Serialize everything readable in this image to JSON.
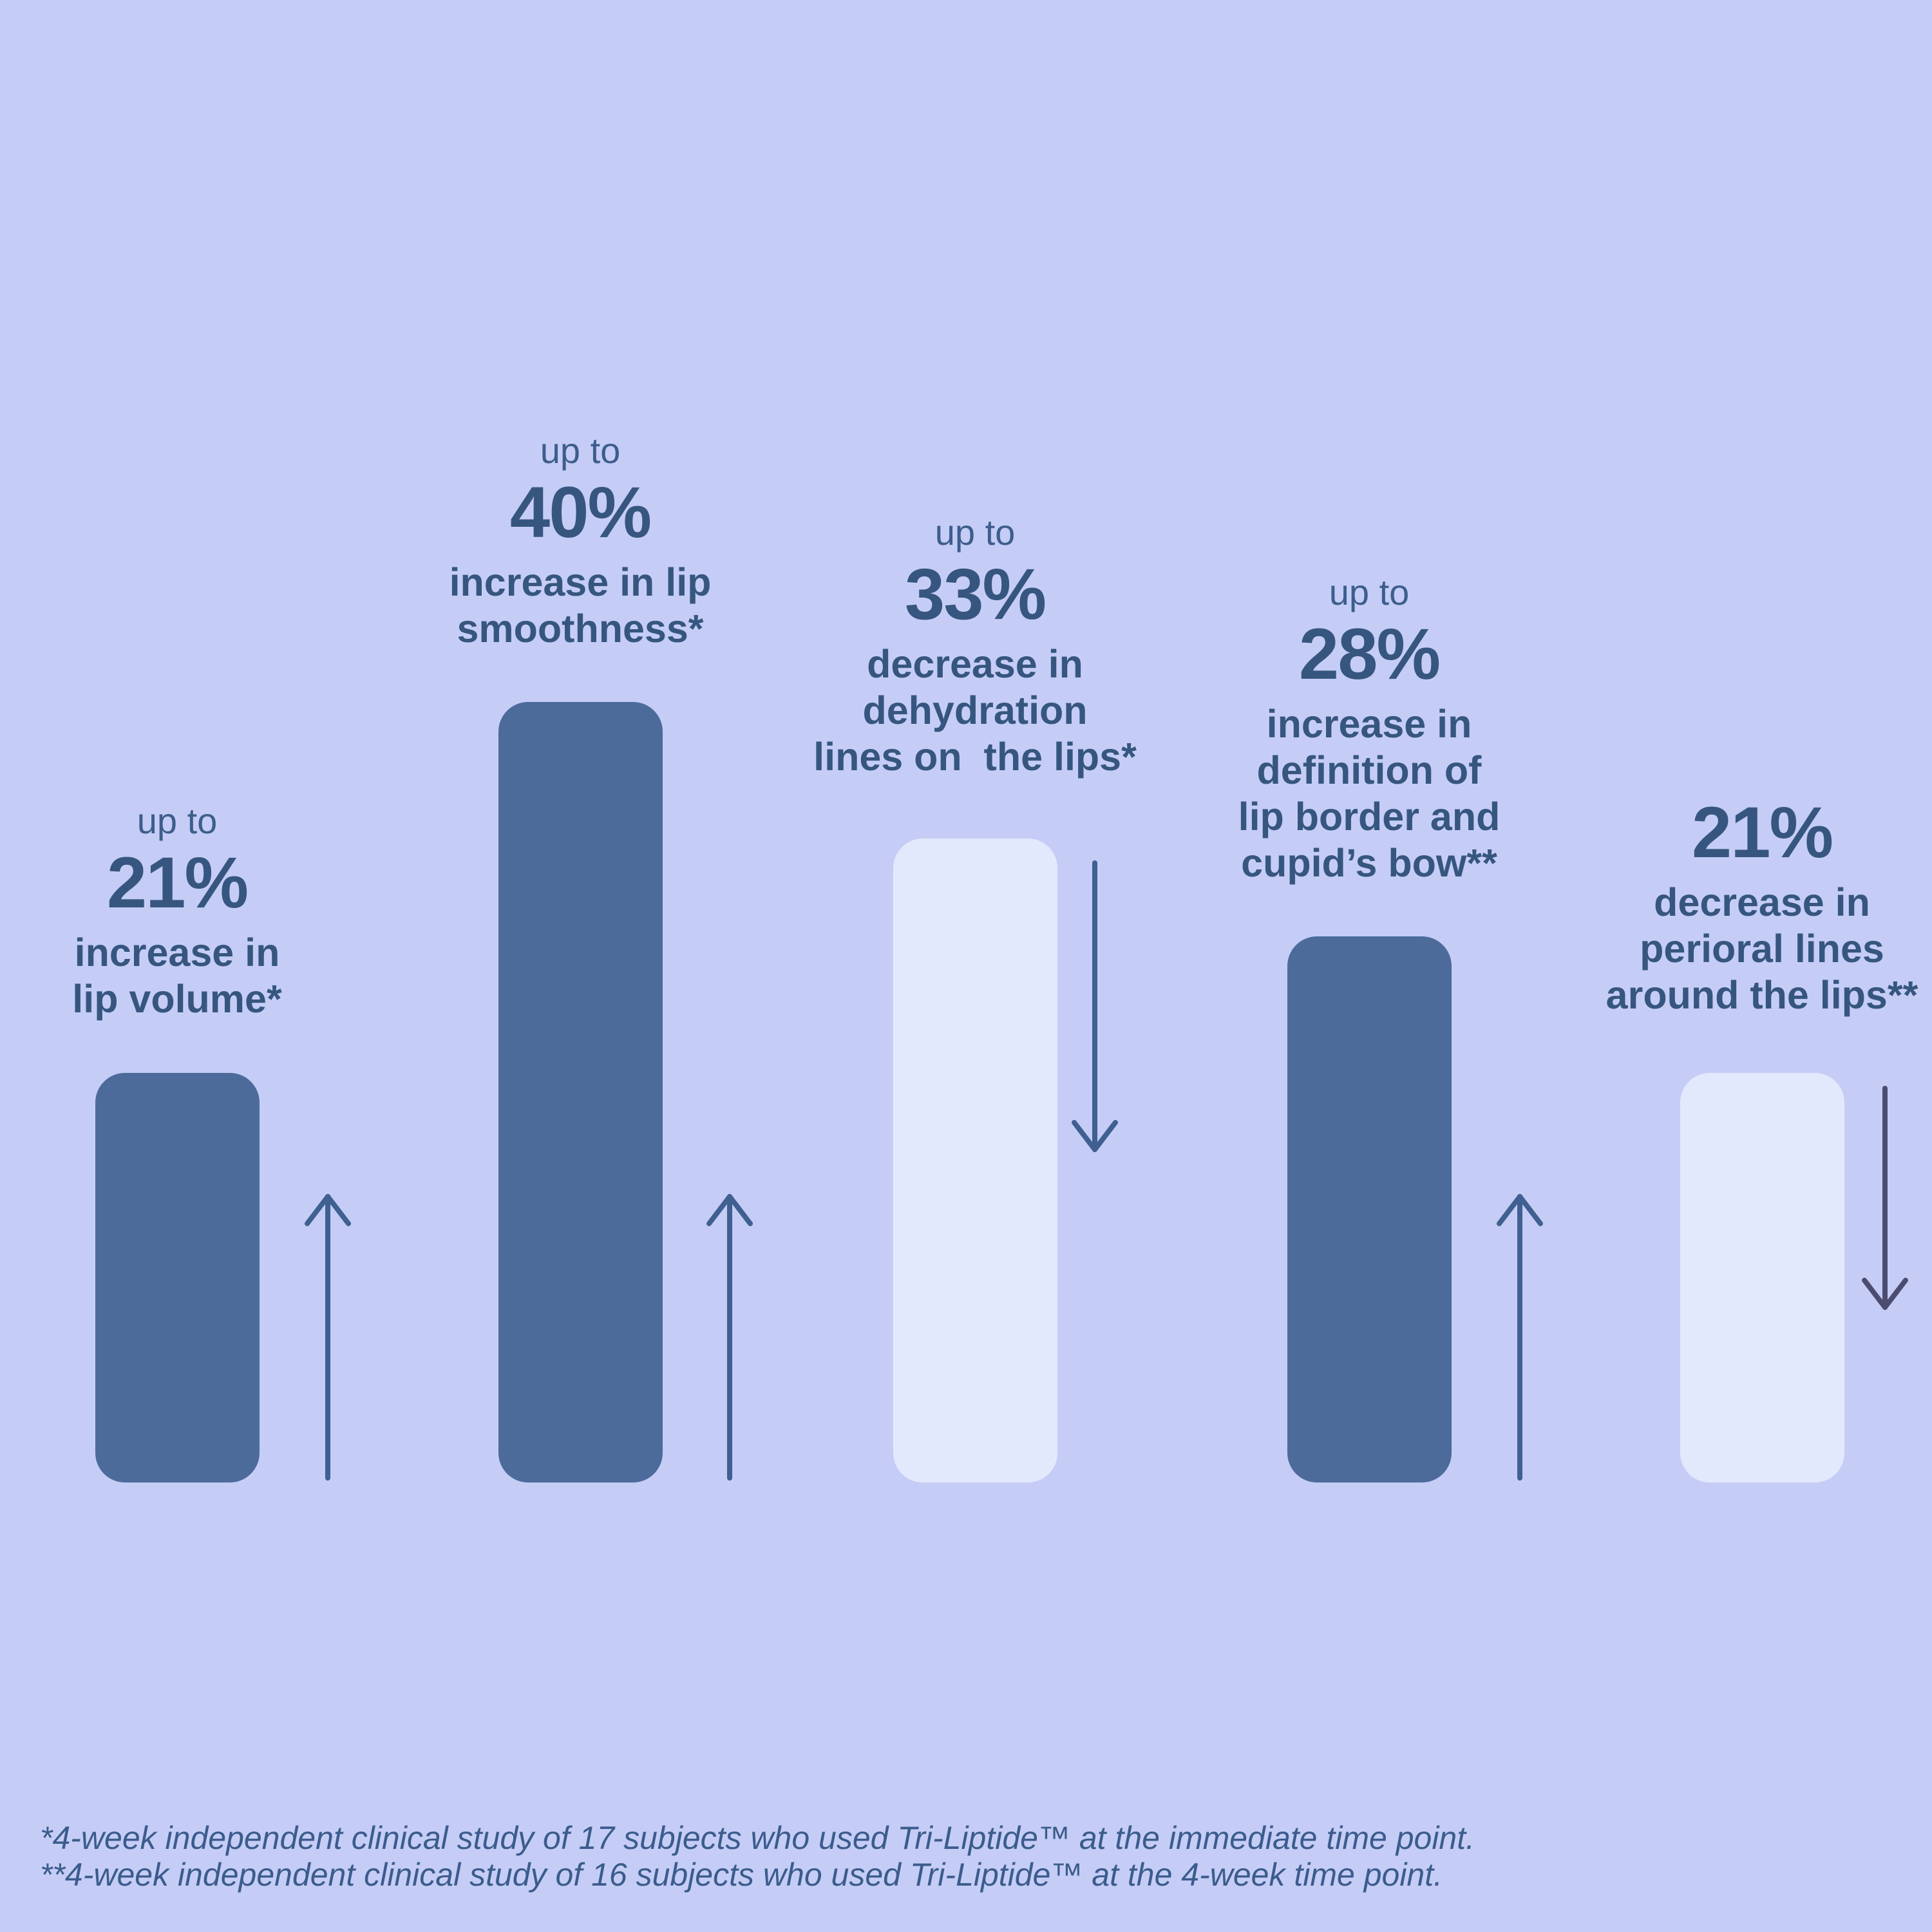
{
  "chart_data": {
    "type": "bar",
    "title": "",
    "unit": "%",
    "ylim": [
      0,
      40
    ],
    "grid": false,
    "legend": "none",
    "categories": [
      "lip volume",
      "lip smoothness",
      "dehydration lines on the lips",
      "definition of lip border and cupid's bow",
      "perioral lines around the lips"
    ],
    "values": [
      21,
      40,
      33,
      28,
      21
    ],
    "series": [
      {
        "qualifier": "up to",
        "display_value": "21%",
        "value": 21,
        "label_lines": [
          "increase in",
          "lip volume*"
        ],
        "trend": "up",
        "bar_style": "dark",
        "arrow_color": "arrow"
      },
      {
        "qualifier": "up to",
        "display_value": "40%",
        "value": 40,
        "label_lines": [
          "increase in lip",
          "smoothness*"
        ],
        "trend": "up",
        "bar_style": "dark",
        "arrow_color": "arrow"
      },
      {
        "qualifier": "up to",
        "display_value": "33%",
        "value": 33,
        "label_lines": [
          "decrease in",
          "dehydration",
          "lines on  the lips*"
        ],
        "trend": "down",
        "bar_style": "light",
        "arrow_color": "arrow"
      },
      {
        "qualifier": "up to",
        "display_value": "28%",
        "value": 28,
        "label_lines": [
          "increase in",
          "definition of",
          "lip border and",
          "cupid’s bow**"
        ],
        "trend": "up",
        "bar_style": "dark",
        "arrow_color": "arrow"
      },
      {
        "qualifier": "",
        "display_value": "21%",
        "value": 21,
        "label_lines": [
          "decrease in",
          "perioral lines",
          "around the lips**"
        ],
        "trend": "down",
        "bar_style": "light",
        "arrow_color": "arrow_alt"
      }
    ]
  },
  "footnotes": [
    "*4-week independent clinical study of 17 subjects who used Tri-Liptide™ at the immediate time point.",
    "**4-week independent clinical study of 16 subjects who used Tri-Liptide™ at the 4-week time point."
  ],
  "colors": {
    "background": "#c5cdf6",
    "bar_dark": "#4c6b9b",
    "bar_light": "#e3e9fc",
    "heading_text": "#36567f",
    "body_text": "#3d5e8c",
    "footnote_text": "#3b5c8c",
    "arrow": "#3f6090",
    "arrow_alt": "#4c4c70"
  }
}
